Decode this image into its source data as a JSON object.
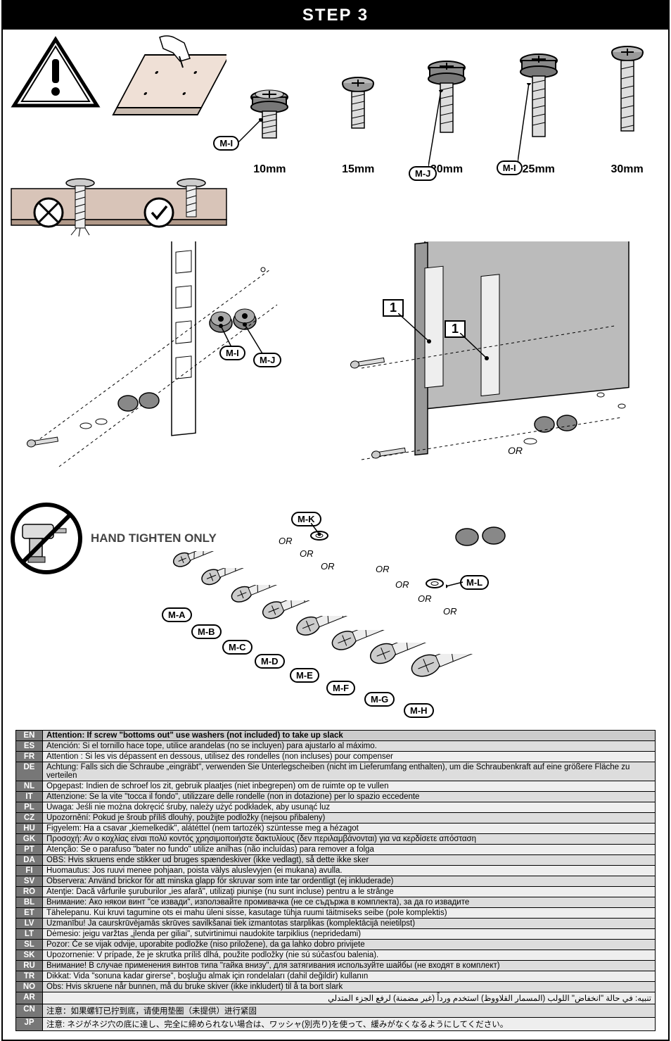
{
  "header": "STEP 3",
  "screws": [
    {
      "size": "10mm",
      "shaft_h": 38,
      "bubble": "M-I",
      "bubble_pos": "left"
    },
    {
      "size": "15mm",
      "shaft_h": 52,
      "bubble": null
    },
    {
      "size": "20mm",
      "shaft_h": 70,
      "bubble": "M-J",
      "bubble_pos": "below"
    },
    {
      "size": "25mm",
      "shaft_h": 86,
      "bubble": "M-I",
      "bubble_pos": "below"
    },
    {
      "size": "30mm",
      "shaft_h": 100,
      "bubble": null
    }
  ],
  "spacer_labels": {
    "left": "M-I",
    "right": "M-J"
  },
  "hand_tighten": "HAND TIGHTEN ONLY",
  "washer_labels": {
    "upper": "M-K",
    "right": "M-L"
  },
  "lower_screws": [
    "M-A",
    "M-B",
    "M-C",
    "M-D",
    "M-E",
    "M-F",
    "M-G",
    "M-H"
  ],
  "or_text": "OR",
  "callout_one": "1",
  "lang_header_code": "EN",
  "lang_header_text": "Attention: If screw \"bottoms out\" use washers (not included) to take up slack",
  "langs": [
    {
      "code": "ES",
      "text": "Atención: Si el tornillo hace tope, utilice arandelas (no se incluyen) para ajustarlo al máximo."
    },
    {
      "code": "FR",
      "text": "Attention : Si les vis dépassent en dessous, utilisez des rondelles (non incluses) pour compenser"
    },
    {
      "code": "DE",
      "text": "Achtung: Falls sich die Schraube „eingräbt\", verwenden Sie Unterlegscheiben (nicht im Lieferumfang enthalten), um die Schraubenkraft auf eine größere Fläche zu verteilen"
    },
    {
      "code": "NL",
      "text": "Opgepast: Indien de schroef los zit, gebruik plaatjes (niet inbegrepen) om de ruimte op te vullen"
    },
    {
      "code": "IT",
      "text": "Attenzione: Se la vite \"tocca il fondo\", utilizzare delle rondelle (non in dotazione) per lo spazio eccedente"
    },
    {
      "code": "PL",
      "text": "Uwaga: Jeśli nie można dokręcić śruby, należy użyć podkładek, aby usunąć luz"
    },
    {
      "code": "CZ",
      "text": "Upozornění: Pokud je šroub příliš dlouhý, použijte podložky (nejsou přibaleny)"
    },
    {
      "code": "HU",
      "text": "Figyelem: Ha a csavar „kiemelkedik\", alátéttel (nem tartozék) szüntesse meg a hézagot"
    },
    {
      "code": "GK",
      "text": "Προσοχή: Αν ο κοχλίας είναι πολύ κοντός χρησιμοποιήστε δακτυλίους (δεν περιλαμβάνονται) για να κερδίσετε απόσταση"
    },
    {
      "code": "PT",
      "text": "Atenção: Se o parafuso \"bater no fundo\" utilize anilhas (não incluídas) para remover a folga"
    },
    {
      "code": "DA",
      "text": "OBS: Hvis skruens ende stikker ud bruges spændeskiver (ikke vedlagt), så dette ikke sker"
    },
    {
      "code": "FI",
      "text": "Huomautus: Jos ruuvi menee pohjaan, poista välys aluslevyjen (ei mukana) avulla."
    },
    {
      "code": "SV",
      "text": "Observera: Använd brickor för att minska glapp för skruvar som inte tar ordentligt (ej inkluderade)"
    },
    {
      "code": "RO",
      "text": "Atenţie: Dacă vârfurile şuruburilor „ies afară\", utilizaţi piunişe (nu sunt incluse) pentru a le strânge"
    },
    {
      "code": "BL",
      "text": "Внимание: Ако някои винт \"се извади\", изполэвайте промивачка (не се съдържа в комплекта), за да го извадите"
    },
    {
      "code": "ET",
      "text": "Tähelepanu. Kui kruvi tagumine ots ei mahu üleni sisse, kasutage tühja ruumi täitmiseks seibe (pole komplektis)"
    },
    {
      "code": "LV",
      "text": "Uzmanību! Ja caurskrūvējamās skrūves savilkšanai tiek izmantotas starplikas (komplektācijā neietilpst)"
    },
    {
      "code": "LT",
      "text": "Dėmesio: jeigu varžtas „įlenda per giliai\", sutvirtinimui naudokite tarpiklius (nepridedami)"
    },
    {
      "code": "SL",
      "text": "Pozor: Če se vijak odvije, uporabite podložke (niso priložene), da ga lahko dobro privijete"
    },
    {
      "code": "SK",
      "text": "Upozornenie: V prípade, že je skrutka príliš dlhá, použite podložky (nie sú súčasťou balenia)."
    },
    {
      "code": "RU",
      "text": "Внимание! В случае применения винтов типа \"гайка внизу\", для затягивания используйте шайбы (не входят в комплект)"
    },
    {
      "code": "TR",
      "text": "Dikkat: Vida \"sonuna kadar girerse\", boşluğu almak için rondelaları (dahil değildir) kullanın"
    },
    {
      "code": "NO",
      "text": "Obs: Hvis skruene når bunnen, må du bruke skiver (ikke inkludert) til å ta bort slark"
    },
    {
      "code": "AR",
      "text": "تنبيه: في حالة \"انخفاض\" اللولب (المسمار القلاووظ) استخدم ورداً (غير مضمنة) لرفع الجزء المتدلي"
    },
    {
      "code": "CN",
      "text": "注意：如果螺钉已拧到底，请使用垫圈（未提供）进行紧固"
    },
    {
      "code": "JP",
      "text": "注意: ネジがネジ穴の底に達し、完全に締められない場合は、ワッシャ(別売り)を使って、緩みがなくなるようにしてください。"
    }
  ],
  "colors": {
    "spacer": "#888888",
    "panel": "#efe0d6",
    "back": "#bbbbbb"
  }
}
